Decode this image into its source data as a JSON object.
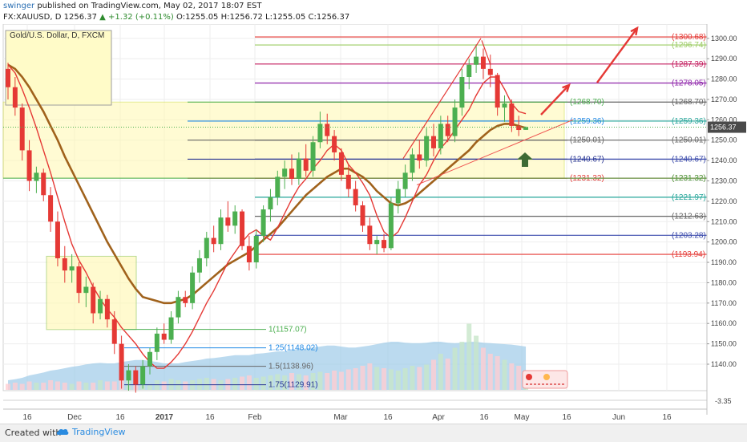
{
  "header": {
    "author": "swinger",
    "published": "published on TradingView.com, May 02, 2017 18:07 EST",
    "symbol": "FX:XAUUSD, D",
    "price": "1256.37",
    "change": "▲ +1.32 (+0.11%)",
    "ohlc": "O:1255.05 H:1256.72 L:1255.05 C:1256.37"
  },
  "footer": {
    "created_with": "Created with",
    "brand": "TradingView"
  },
  "colors": {
    "up": "#4caf50",
    "down": "#e53935",
    "ema_short": "#e53935",
    "ema_long": "#a0621c",
    "zone": "#fff8b0",
    "volume": "#9ecbe8"
  },
  "chart_data": {
    "type": "candlestick",
    "title": "Gold/U.S. Dollar, D, FXCM",
    "y_range": [
      1127,
      1307
    ],
    "y_ticks": [
      1140,
      1150,
      1160,
      1170,
      1180,
      1190,
      1200,
      1210,
      1220,
      1230,
      1240,
      1250,
      1260,
      1270,
      1280,
      1290,
      1300
    ],
    "x_tick_labels": [
      "16",
      "Dec",
      "16",
      "2017",
      "16",
      "Feb",
      "Mar",
      "16",
      "Apr",
      "16",
      "May",
      "16",
      "Jun",
      "16"
    ],
    "last_price": "1256.37",
    "indicator_value": "-3.35",
    "ema_short_series": [
      1287,
      1283,
      1275,
      1266,
      1256,
      1245,
      1234,
      1222,
      1210,
      1199,
      1191,
      1185,
      1178,
      1172,
      1167,
      1163,
      1158,
      1154,
      1150,
      1145,
      1141,
      1138,
      1138,
      1141,
      1145,
      1150,
      1156,
      1163,
      1170,
      1176,
      1183,
      1190,
      1195,
      1200,
      1204,
      1206,
      1203,
      1201,
      1207,
      1214,
      1221,
      1227,
      1231,
      1236,
      1240,
      1245,
      1248,
      1245,
      1238,
      1234,
      1229,
      1223,
      1213,
      1205,
      1202,
      1205,
      1212,
      1220,
      1228,
      1233,
      1240,
      1246,
      1250,
      1255,
      1260,
      1265,
      1272,
      1278,
      1281,
      1281,
      1275,
      1268,
      1264,
      1263
    ],
    "ema_long_series": [
      1287,
      1285,
      1281,
      1276,
      1270,
      1264,
      1257,
      1250,
      1242,
      1235,
      1228,
      1221,
      1214,
      1207,
      1200,
      1194,
      1188,
      1182,
      1177,
      1173,
      1172,
      1171,
      1170,
      1170,
      1171,
      1172,
      1174,
      1177,
      1180,
      1183,
      1186,
      1189,
      1191,
      1193,
      1195,
      1198,
      1201,
      1204,
      1207,
      1211,
      1215,
      1219,
      1223,
      1226,
      1229,
      1232,
      1234,
      1236,
      1236,
      1234,
      1232,
      1229,
      1225,
      1222,
      1219,
      1218,
      1219,
      1221,
      1224,
      1227,
      1230,
      1233,
      1236,
      1239,
      1242,
      1245,
      1249,
      1252,
      1255,
      1257,
      1258,
      1258,
      1257,
      1256
    ],
    "candles": [
      [
        1285,
        1288,
        1270,
        1276
      ],
      [
        1276,
        1281,
        1262,
        1266
      ],
      [
        1266,
        1268,
        1240,
        1245
      ],
      [
        1245,
        1250,
        1225,
        1230
      ],
      [
        1230,
        1237,
        1224,
        1234
      ],
      [
        1234,
        1236,
        1220,
        1223
      ],
      [
        1223,
        1227,
        1205,
        1210
      ],
      [
        1210,
        1215,
        1188,
        1192
      ],
      [
        1192,
        1198,
        1180,
        1186
      ],
      [
        1186,
        1194,
        1180,
        1188
      ],
      [
        1188,
        1190,
        1170,
        1175
      ],
      [
        1175,
        1183,
        1168,
        1178
      ],
      [
        1178,
        1180,
        1160,
        1165
      ],
      [
        1165,
        1176,
        1162,
        1172
      ],
      [
        1172,
        1174,
        1158,
        1162
      ],
      [
        1162,
        1166,
        1145,
        1150
      ],
      [
        1150,
        1154,
        1128,
        1132
      ],
      [
        1132,
        1140,
        1127,
        1137
      ],
      [
        1137,
        1139,
        1126,
        1130
      ],
      [
        1130,
        1142,
        1128,
        1139
      ],
      [
        1139,
        1148,
        1135,
        1146
      ],
      [
        1146,
        1158,
        1142,
        1155
      ],
      [
        1155,
        1160,
        1150,
        1152
      ],
      [
        1152,
        1166,
        1150,
        1163
      ],
      [
        1163,
        1176,
        1160,
        1173
      ],
      [
        1173,
        1176,
        1168,
        1170
      ],
      [
        1170,
        1188,
        1167,
        1185
      ],
      [
        1185,
        1196,
        1180,
        1192
      ],
      [
        1192,
        1205,
        1188,
        1202
      ],
      [
        1202,
        1208,
        1195,
        1199
      ],
      [
        1199,
        1216,
        1196,
        1212
      ],
      [
        1212,
        1220,
        1205,
        1208
      ],
      [
        1208,
        1218,
        1204,
        1215
      ],
      [
        1215,
        1216,
        1196,
        1198
      ],
      [
        1198,
        1203,
        1186,
        1190
      ],
      [
        1190,
        1206,
        1187,
        1203
      ],
      [
        1203,
        1218,
        1200,
        1216
      ],
      [
        1216,
        1226,
        1210,
        1222
      ],
      [
        1222,
        1235,
        1218,
        1232
      ],
      [
        1232,
        1240,
        1226,
        1236
      ],
      [
        1236,
        1243,
        1228,
        1231
      ],
      [
        1231,
        1244,
        1228,
        1241
      ],
      [
        1241,
        1248,
        1232,
        1235
      ],
      [
        1235,
        1252,
        1232,
        1249
      ],
      [
        1249,
        1264,
        1246,
        1258
      ],
      [
        1258,
        1263,
        1248,
        1252
      ],
      [
        1252,
        1255,
        1240,
        1244
      ],
      [
        1244,
        1246,
        1230,
        1233
      ],
      [
        1233,
        1238,
        1222,
        1226
      ],
      [
        1226,
        1230,
        1215,
        1218
      ],
      [
        1218,
        1220,
        1205,
        1208
      ],
      [
        1208,
        1212,
        1196,
        1199
      ],
      [
        1199,
        1203,
        1194,
        1201
      ],
      [
        1201,
        1204,
        1195,
        1197
      ],
      [
        1197,
        1222,
        1196,
        1219
      ],
      [
        1219,
        1230,
        1214,
        1226
      ],
      [
        1226,
        1238,
        1222,
        1234
      ],
      [
        1234,
        1246,
        1230,
        1243
      ],
      [
        1243,
        1250,
        1236,
        1240
      ],
      [
        1240,
        1256,
        1237,
        1252
      ],
      [
        1252,
        1258,
        1242,
        1246
      ],
      [
        1246,
        1262,
        1243,
        1258
      ],
      [
        1258,
        1262,
        1249,
        1252
      ],
      [
        1252,
        1270,
        1249,
        1266
      ],
      [
        1266,
        1285,
        1262,
        1281
      ],
      [
        1281,
        1290,
        1275,
        1287
      ],
      [
        1287,
        1297,
        1283,
        1291
      ],
      [
        1291,
        1295,
        1280,
        1285
      ],
      [
        1285,
        1292,
        1276,
        1282
      ],
      [
        1282,
        1283,
        1262,
        1266
      ],
      [
        1266,
        1272,
        1259,
        1268
      ],
      [
        1268,
        1270,
        1254,
        1257
      ],
      [
        1257,
        1262,
        1252,
        1255
      ],
      [
        1255.05,
        1256.72,
        1255.05,
        1256.37
      ]
    ],
    "volume": [
      0.05,
      0.06,
      0.05,
      0.07,
      0.06,
      0.06,
      0.08,
      0.07,
      0.06,
      0.05,
      0.07,
      0.06,
      0.06,
      0.08,
      0.07,
      0.07,
      0.09,
      0.08,
      0.07,
      0.06,
      0.05,
      0.08,
      0.07,
      0.09,
      0.08,
      0.07,
      0.08,
      0.09,
      0.1,
      0.09,
      0.08,
      0.09,
      0.1,
      0.11,
      0.12,
      0.1,
      0.11,
      0.12,
      0.13,
      0.12,
      0.14,
      0.13,
      0.12,
      0.14,
      0.15,
      0.14,
      0.16,
      0.15,
      0.17,
      0.18,
      0.2,
      0.22,
      0.19,
      0.18,
      0.17,
      0.16,
      0.18,
      0.2,
      0.19,
      0.21,
      0.25,
      0.3,
      0.26,
      0.35,
      0.4,
      0.55,
      0.45,
      0.35,
      0.3,
      0.28,
      0.25,
      0.22,
      0.2,
      0.15
    ],
    "volume_area": [
      0.2,
      0.22,
      0.25,
      0.3,
      0.33,
      0.36,
      0.4,
      0.42,
      0.45,
      0.48,
      0.5,
      0.53,
      0.55,
      0.56,
      0.55,
      0.55,
      0.58,
      0.6,
      0.62,
      0.62,
      0.6,
      0.58,
      0.55,
      0.55,
      0.55,
      0.58,
      0.6,
      0.62,
      0.65,
      0.66,
      0.68,
      0.7,
      0.72,
      0.72,
      0.72,
      0.75,
      0.76,
      0.78,
      0.8,
      0.8,
      0.82,
      0.85,
      0.86,
      0.88,
      0.9,
      0.92,
      0.92,
      0.9,
      0.88,
      0.88,
      0.9,
      0.92,
      0.95,
      0.98,
      1.0,
      1.0,
      0.98,
      0.97,
      0.97,
      0.98,
      1.0,
      1.0,
      0.98,
      0.97,
      0.98,
      1.0,
      1.0,
      0.98,
      0.97,
      0.96,
      0.95,
      0.94,
      0.92,
      0.9
    ],
    "fib_labels": [
      {
        "price": 1300.68,
        "label": "(1300.68)",
        "color": "#e53935"
      },
      {
        "price": 1296.74,
        "label": "(1296.74)",
        "color": "#9ccc65"
      },
      {
        "price": 1287.39,
        "label": "(1287.39)",
        "color": "#c2185b"
      },
      {
        "price": 1278.05,
        "label": "(1278.05)",
        "color": "#8e24aa"
      },
      {
        "price": 1268.7,
        "label": "(1268.70)",
        "color": "#666666"
      },
      {
        "price": 1259.36,
        "label": "(1259.36)",
        "color": "#26a69a"
      },
      {
        "price": 1250.01,
        "label": "(1250.01)",
        "color": "#666666"
      },
      {
        "price": 1240.67,
        "label": "(1240.67)",
        "color": "#3949ab"
      },
      {
        "price": 1231.32,
        "label": "(1231.32)",
        "color": "#e53935"
      },
      {
        "price": 1221.97,
        "label": "(1221.97)",
        "color": "#26a69a"
      },
      {
        "price": 1212.63,
        "label": "(1212.63)",
        "color": "#666666"
      },
      {
        "price": 1203.28,
        "label": "(1203.28)",
        "color": "#3949ab"
      },
      {
        "price": 1193.94,
        "label": "(1193.94)",
        "color": "#e53935"
      }
    ],
    "fib_inner": [
      {
        "price": 1268.7,
        "label": "(1268.70)",
        "color": "#4caf50"
      },
      {
        "price": 1259.36,
        "label": "(1259.36)",
        "color": "#1e88e5"
      },
      {
        "price": 1250.01,
        "label": "(1250.01)",
        "color": "#666666"
      },
      {
        "price": 1240.67,
        "label": "(1240.67)",
        "color": "#283593"
      },
      {
        "price": 1231.32,
        "label": "(1231.32)",
        "color": "#e53935"
      }
    ],
    "fib_extension": [
      {
        "price": 1157.07,
        "label": "1(1157.07)",
        "color": "#4caf50"
      },
      {
        "price": 1148.02,
        "label": "1.25(1148.02)",
        "color": "#1e88e5"
      },
      {
        "price": 1138.96,
        "label": "1.5(1138.96)",
        "color": "#666666"
      },
      {
        "price": 1129.91,
        "label": "1.75(1129.91)",
        "color": "#283593"
      }
    ],
    "green_level": {
      "price": 1231.32,
      "label": "(1231.32)"
    }
  }
}
